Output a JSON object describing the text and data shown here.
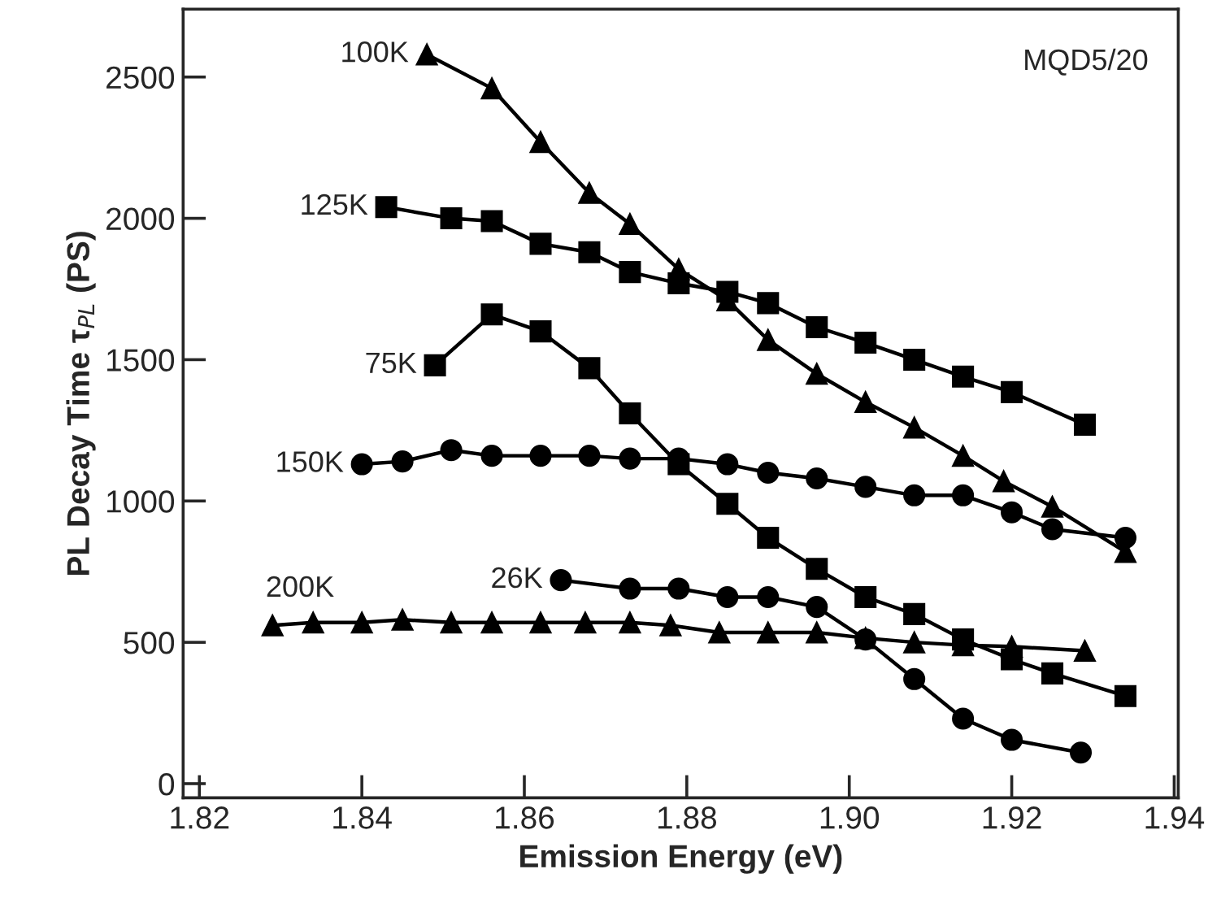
{
  "chart_data": {
    "type": "line",
    "xlabel": "Emission Energy (eV)",
    "ylabel": "PL Decay Time τ$_{PL}$ (PS)",
    "xlim": [
      1.818,
      1.9405
    ],
    "xticks": [
      {
        "value": 1.82,
        "label": "1.82"
      },
      {
        "value": 1.84,
        "label": "1.84"
      },
      {
        "value": 1.86,
        "label": "1.86"
      },
      {
        "value": 1.88,
        "label": "1.88"
      },
      {
        "value": 1.9,
        "label": "1.90"
      },
      {
        "value": 1.92,
        "label": "1.92"
      },
      {
        "value": 1.94,
        "label": "1.94"
      }
    ],
    "ylim": [
      -50,
      2740
    ],
    "yticks": [
      0,
      500,
      1000,
      1500,
      2000,
      2500
    ],
    "grid": false,
    "legend": false,
    "annotations": [
      "MQD5/20"
    ],
    "series": [
      {
        "name": "100K",
        "color": "#000000",
        "marker": "triangle",
        "x": [
          1.848,
          1.856,
          1.862,
          1.868,
          1.873,
          1.879,
          1.885,
          1.89,
          1.896,
          1.902,
          1.908,
          1.914,
          1.919,
          1.925,
          1.934
        ],
        "values": [
          2580,
          2460,
          2270,
          2090,
          1980,
          1820,
          1710,
          1570,
          1450,
          1350,
          1260,
          1160,
          1070,
          980,
          820
        ]
      },
      {
        "name": "125K",
        "color": "#000000",
        "marker": "square",
        "x": [
          1.843,
          1.851,
          1.856,
          1.862,
          1.868,
          1.873,
          1.879,
          1.885,
          1.89,
          1.896,
          1.902,
          1.908,
          1.914,
          1.92,
          1.929
        ],
        "values": [
          2040,
          2000,
          1990,
          1910,
          1880,
          1810,
          1770,
          1740,
          1700,
          1615,
          1560,
          1500,
          1440,
          1385,
          1270
        ]
      },
      {
        "name": "75K",
        "color": "#000000",
        "marker": "square",
        "x": [
          1.849,
          1.856,
          1.862,
          1.868,
          1.873,
          1.879,
          1.885,
          1.89,
          1.896,
          1.902,
          1.908,
          1.914,
          1.92,
          1.925,
          1.934
        ],
        "values": [
          1480,
          1660,
          1600,
          1470,
          1310,
          1130,
          990,
          870,
          760,
          660,
          600,
          510,
          440,
          390,
          310
        ]
      },
      {
        "name": "150K",
        "color": "#000000",
        "marker": "circle",
        "x": [
          1.84,
          1.845,
          1.851,
          1.856,
          1.862,
          1.868,
          1.873,
          1.879,
          1.885,
          1.89,
          1.896,
          1.902,
          1.908,
          1.914,
          1.92,
          1.925,
          1.934
        ],
        "values": [
          1130,
          1140,
          1180,
          1160,
          1160,
          1160,
          1150,
          1150,
          1130,
          1100,
          1080,
          1050,
          1020,
          1020,
          960,
          900,
          870
        ]
      },
      {
        "name": "26K",
        "color": "#000000",
        "marker": "circle",
        "x": [
          1.8645,
          1.873,
          1.879,
          1.885,
          1.89,
          1.896,
          1.902,
          1.908,
          1.914,
          1.92,
          1.9285
        ],
        "values": [
          720,
          690,
          690,
          660,
          660,
          625,
          510,
          370,
          230,
          155,
          110
        ]
      },
      {
        "name": "200K",
        "color": "#000000",
        "marker": "triangle",
        "x": [
          1.829,
          1.834,
          1.84,
          1.845,
          1.851,
          1.856,
          1.862,
          1.8675,
          1.873,
          1.878,
          1.884,
          1.89,
          1.896,
          1.902,
          1.908,
          1.914,
          1.92,
          1.929
        ],
        "values": [
          560,
          570,
          570,
          580,
          570,
          570,
          570,
          570,
          570,
          560,
          535,
          535,
          535,
          515,
          500,
          490,
          485,
          470
        ]
      }
    ]
  }
}
